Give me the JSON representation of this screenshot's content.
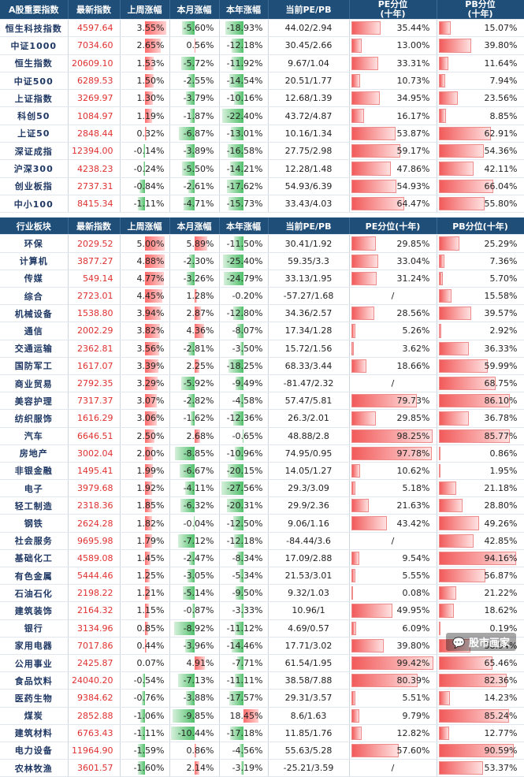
{
  "index_table": {
    "headers": [
      "A股重要指数",
      "最新指数",
      "上周涨幅",
      "本月涨幅",
      "本年涨幅",
      "当前PE/PB",
      "PE分位\n(十年)",
      "PB分位\n(十年)"
    ],
    "rows": [
      {
        "name": "恒生科技指数",
        "latest": "4597.64",
        "week": "3.55%",
        "month": "-5.60%",
        "year": "-18.93%",
        "pepb": "44.02/2.94",
        "pe_pct": "35.44%",
        "pb_pct": "15.07%"
      },
      {
        "name": "中证1000",
        "latest": "7034.60",
        "week": "2.65%",
        "month": "0.56%",
        "year": "-12.18%",
        "pepb": "30.45/2.66",
        "pe_pct": "13.00%",
        "pb_pct": "39.80%"
      },
      {
        "name": "恒生指数",
        "latest": "20609.10",
        "week": "1.53%",
        "month": "-5.72%",
        "year": "-11.92%",
        "pepb": "9.67/1.04",
        "pe_pct": "33.31%",
        "pb_pct": "11.64%"
      },
      {
        "name": "中证500",
        "latest": "6289.53",
        "week": "1.50%",
        "month": "-2.55%",
        "year": "-14.54%",
        "pepb": "20.51/1.77",
        "pe_pct": "10.73%",
        "pb_pct": "7.94%"
      },
      {
        "name": "上证指数",
        "latest": "3269.97",
        "week": "1.30%",
        "month": "-3.79%",
        "year": "-10.16%",
        "pepb": "12.68/1.39",
        "pe_pct": "34.95%",
        "pb_pct": "23.56%"
      },
      {
        "name": "科创50",
        "latest": "1084.97",
        "week": "1.19%",
        "month": "-1.87%",
        "year": "-22.40%",
        "pepb": "43.72/4.87",
        "pe_pct": "16.17%",
        "pb_pct": "8.85%"
      },
      {
        "name": "上证50",
        "latest": "2848.44",
        "week": "0.32%",
        "month": "-6.87%",
        "year": "-13.01%",
        "pepb": "10.16/1.34",
        "pe_pct": "53.87%",
        "pb_pct": "62.91%"
      },
      {
        "name": "深证成指",
        "latest": "12394.00",
        "week": "-0.14%",
        "month": "-3.89%",
        "year": "-16.58%",
        "pepb": "27.75/2.98",
        "pe_pct": "59.17%",
        "pb_pct": "54.36%"
      },
      {
        "name": "沪深300",
        "latest": "4238.23",
        "week": "-0.24%",
        "month": "-5.50%",
        "year": "-14.21%",
        "pepb": "12.28/1.48",
        "pe_pct": "47.86%",
        "pb_pct": "42.11%"
      },
      {
        "name": "创业板指",
        "latest": "2737.31",
        "week": "-0.84%",
        "month": "-2.61%",
        "year": "-17.62%",
        "pepb": "54.93/6.39",
        "pe_pct": "54.93%",
        "pb_pct": "66.04%"
      },
      {
        "name": "中小100",
        "latest": "8415.34",
        "week": "-1.11%",
        "month": "-4.71%",
        "year": "-15.73%",
        "pepb": "33.43/4.03",
        "pe_pct": "64.47%",
        "pb_pct": "55.80%"
      }
    ]
  },
  "sector_table": {
    "headers": [
      "行业板块",
      "最新指数",
      "上周涨幅",
      "本月涨幅",
      "本年涨幅",
      "当前PE/PB",
      "PE分位(十年)",
      "PB分位(十年)"
    ],
    "rows": [
      {
        "name": "环保",
        "latest": "2029.52",
        "week": "5.00%",
        "month": "5.89%",
        "year": "-11.50%",
        "pepb": "30.41/1.92",
        "pe_pct": "29.85%",
        "pb_pct": "25.29%"
      },
      {
        "name": "计算机",
        "latest": "3877.27",
        "week": "4.88%",
        "month": "-2.30%",
        "year": "-25.40%",
        "pepb": "59.35/3.3",
        "pe_pct": "33.04%",
        "pb_pct": "7.36%"
      },
      {
        "name": "传媒",
        "latest": "549.14",
        "week": "4.77%",
        "month": "-3.26%",
        "year": "-24.79%",
        "pepb": "33.13/1.95",
        "pe_pct": "31.24%",
        "pb_pct": "5.70%"
      },
      {
        "name": "综合",
        "latest": "2723.01",
        "week": "4.45%",
        "month": "1.28%",
        "year": "-0.20%",
        "pepb": "-57.27/1.68",
        "pe_pct": "/",
        "pb_pct": "15.58%"
      },
      {
        "name": "机械设备",
        "latest": "1538.80",
        "week": "3.94%",
        "month": "2.87%",
        "year": "-12.80%",
        "pepb": "34.36/2.57",
        "pe_pct": "28.56%",
        "pb_pct": "39.57%"
      },
      {
        "name": "通信",
        "latest": "2002.29",
        "week": "3.82%",
        "month": "4.36%",
        "year": "-8.07%",
        "pepb": "17.34/1.28",
        "pe_pct": "5.26%",
        "pb_pct": "2.92%"
      },
      {
        "name": "交通运输",
        "latest": "2362.81",
        "week": "3.56%",
        "month": "-2.81%",
        "year": "-3.50%",
        "pepb": "15.72/1.56",
        "pe_pct": "3.62%",
        "pb_pct": "36.33%"
      },
      {
        "name": "国防军工",
        "latest": "1617.07",
        "week": "3.39%",
        "month": "2.25%",
        "year": "-18.25%",
        "pepb": "68.33/3.44",
        "pe_pct": "18.66%",
        "pb_pct": "59.99%"
      },
      {
        "name": "商业贸易",
        "latest": "2792.35",
        "week": "3.29%",
        "month": "-5.92%",
        "year": "-9.49%",
        "pepb": "-81.47/2.32",
        "pe_pct": "/",
        "pb_pct": "68.75%"
      },
      {
        "name": "美容护理",
        "latest": "7317.37",
        "week": "3.07%",
        "month": "-2.82%",
        "year": "-4.58%",
        "pepb": "57.47/5.81",
        "pe_pct": "79.73%",
        "pb_pct": "86.10%"
      },
      {
        "name": "纺织服饰",
        "latest": "1616.29",
        "week": "3.06%",
        "month": "-1.62%",
        "year": "-12.36%",
        "pepb": "26.3/2.01",
        "pe_pct": "29.85%",
        "pb_pct": "36.78%"
      },
      {
        "name": "汽车",
        "latest": "6646.51",
        "week": "2.50%",
        "month": "2.68%",
        "year": "-0.65%",
        "pepb": "48.88/2.8",
        "pe_pct": "98.25%",
        "pb_pct": "85.77%"
      },
      {
        "name": "房地产",
        "latest": "3002.04",
        "week": "2.00%",
        "month": "-8.85%",
        "year": "-10.96%",
        "pepb": "74.95/0.95",
        "pe_pct": "97.78%",
        "pb_pct": "0.86%"
      },
      {
        "name": "非银金融",
        "latest": "1495.41",
        "week": "1.99%",
        "month": "-6.67%",
        "year": "-20.15%",
        "pepb": "14.05/1.27",
        "pe_pct": "10.62%",
        "pb_pct": "1.95%"
      },
      {
        "name": "电子",
        "latest": "3979.68",
        "week": "1.92%",
        "month": "-4.11%",
        "year": "-27.56%",
        "pepb": "29.3/3.09",
        "pe_pct": "5.18%",
        "pb_pct": "21.18%"
      },
      {
        "name": "轻工制造",
        "latest": "2318.36",
        "week": "1.85%",
        "month": "-6.32%",
        "year": "-20.31%",
        "pepb": "29.9/2.36",
        "pe_pct": "21.63%",
        "pb_pct": "28.80%"
      },
      {
        "name": "钢铁",
        "latest": "2624.28",
        "week": "1.82%",
        "month": "-0.04%",
        "year": "-12.50%",
        "pepb": "9.06/1.16",
        "pe_pct": "43.42%",
        "pb_pct": "49.26%"
      },
      {
        "name": "社会服务",
        "latest": "9695.98",
        "week": "1.79%",
        "month": "-7.12%",
        "year": "-12.18%",
        "pepb": "-84.44/3.6",
        "pe_pct": "/",
        "pb_pct": "42.85%"
      },
      {
        "name": "基础化工",
        "latest": "4589.08",
        "week": "1.45%",
        "month": "-2.47%",
        "year": "-8.34%",
        "pepb": "17.09/2.88",
        "pe_pct": "9.54%",
        "pb_pct": "94.16%"
      },
      {
        "name": "有色金属",
        "latest": "5444.46",
        "week": "1.25%",
        "month": "-3.05%",
        "year": "-5.34%",
        "pepb": "21.53/3.01",
        "pe_pct": "5.55%",
        "pb_pct": "56.87%"
      },
      {
        "name": "石油石化",
        "latest": "2198.22",
        "week": "1.21%",
        "month": "-5.14%",
        "year": "-9.50%",
        "pepb": "9.32/1.03",
        "pe_pct": "0.08%",
        "pb_pct": "21.22%"
      },
      {
        "name": "建筑装饰",
        "latest": "2164.32",
        "week": "1.15%",
        "month": "-0.87%",
        "year": "-3.33%",
        "pepb": "10.96/1",
        "pe_pct": "49.95%",
        "pb_pct": "18.62%"
      },
      {
        "name": "银行",
        "latest": "3134.96",
        "week": "0.85%",
        "month": "-8.92%",
        "year": "-11.12%",
        "pepb": "4.69/0.57",
        "pe_pct": "6.09%",
        "pb_pct": "0.19%"
      },
      {
        "name": "家用电器",
        "latest": "7017.86",
        "week": "0.44%",
        "month": "-3.96%",
        "year": "-14.46%",
        "pepb": "17.71/3.02",
        "pe_pct": "39.80%",
        "pb_pct": "38.94%"
      },
      {
        "name": "公用事业",
        "latest": "2425.87",
        "week": "0.07%",
        "month": "4.91%",
        "year": "-7.71%",
        "pepb": "61.54/1.95",
        "pe_pct": "99.42%",
        "pb_pct": "65.46%"
      },
      {
        "name": "食品饮料",
        "latest": "24040.20",
        "week": "-0.54%",
        "month": "-7.13%",
        "year": "-11.11%",
        "pepb": "38.58/7.88",
        "pe_pct": "80.39%",
        "pb_pct": "82.36%"
      },
      {
        "name": "医药生物",
        "latest": "9384.62",
        "week": "-0.76%",
        "month": "-3.88%",
        "year": "-17.57%",
        "pepb": "29.31/3.57",
        "pe_pct": "5.51%",
        "pb_pct": "14.23%"
      },
      {
        "name": "煤炭",
        "latest": "2852.88",
        "week": "-1.06%",
        "month": "-9.85%",
        "year": "18.45%",
        "pepb": "8.6/1.63",
        "pe_pct": "9.79%",
        "pb_pct": "85.24%"
      },
      {
        "name": "建筑材料",
        "latest": "6763.43",
        "week": "-1.11%",
        "month": "-10.44%",
        "year": "-17.18%",
        "pepb": "11.85/1.76",
        "pe_pct": "12.82%",
        "pb_pct": "12.77%"
      },
      {
        "name": "电力设备",
        "latest": "11964.90",
        "week": "-1.59%",
        "month": "0.86%",
        "year": "-4.56%",
        "pepb": "55.63/5.28",
        "pe_pct": "57.60%",
        "pb_pct": "90.59%"
      },
      {
        "name": "农林牧渔",
        "latest": "3601.57",
        "week": "-1.60%",
        "month": "2.14%",
        "year": "-3.19%",
        "pepb": "-25.21/3.59",
        "pe_pct": "/",
        "pb_pct": "53.37%"
      }
    ]
  },
  "watermark": "股市画家"
}
